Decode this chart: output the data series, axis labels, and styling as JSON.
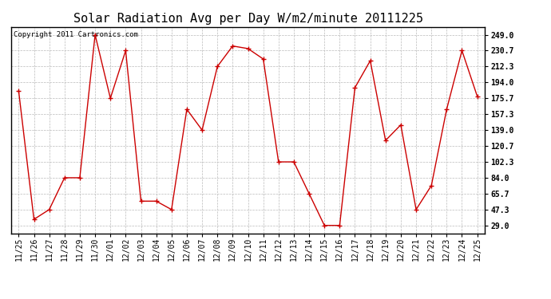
{
  "title": "Solar Radiation Avg per Day W/m2/minute 20111225",
  "copyright_text": "Copyright 2011 Cartronics.com",
  "x_labels": [
    "11/25",
    "11/26",
    "11/27",
    "11/28",
    "11/29",
    "11/30",
    "12/01",
    "12/02",
    "12/03",
    "12/04",
    "12/05",
    "12/06",
    "12/07",
    "12/08",
    "12/09",
    "12/10",
    "12/11",
    "12/12",
    "12/13",
    "12/14",
    "12/15",
    "12/16",
    "12/17",
    "12/18",
    "12/19",
    "12/20",
    "12/21",
    "12/22",
    "12/23",
    "12/24",
    "12/25"
  ],
  "y_values": [
    184.0,
    36.0,
    47.3,
    84.0,
    84.0,
    249.0,
    175.7,
    230.7,
    57.0,
    57.0,
    47.3,
    163.0,
    139.0,
    212.3,
    236.0,
    233.0,
    221.0,
    102.3,
    102.3,
    65.7,
    29.0,
    29.0,
    188.0,
    219.0,
    127.0,
    145.0,
    47.3,
    75.0,
    163.0,
    230.7,
    178.0
  ],
  "y_ticks": [
    29.0,
    47.3,
    65.7,
    84.0,
    102.3,
    120.7,
    139.0,
    157.3,
    175.7,
    194.0,
    212.3,
    230.7,
    249.0
  ],
  "line_color": "#cc0000",
  "marker_color": "#cc0000",
  "bg_color": "#ffffff",
  "grid_color": "#bbbbbb",
  "title_fontsize": 11,
  "tick_fontsize": 7,
  "copyright_fontsize": 6.5
}
